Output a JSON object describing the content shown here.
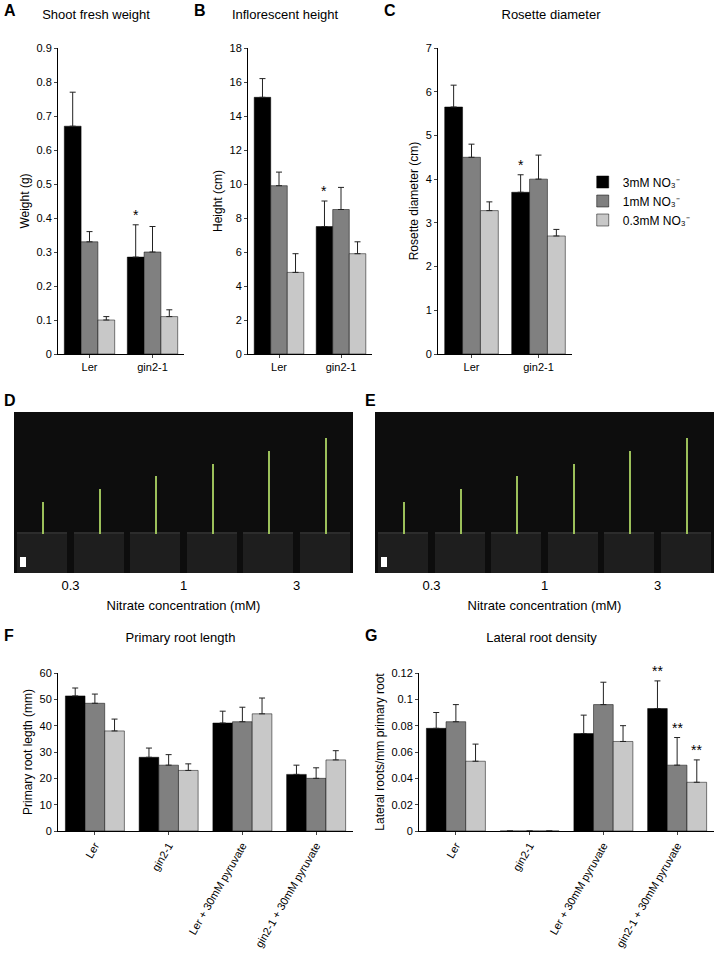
{
  "chart_data": [
    {
      "panel": "A",
      "type": "bar",
      "title": "Shoot fresh weight",
      "ylabel": "Weight (g)",
      "categories": [
        "Ler",
        "gin2-1"
      ],
      "series": [
        {
          "name": "3mM NO₃⁻",
          "color": "#000000",
          "values": [
            0.67,
            0.285
          ],
          "errors": [
            0.1,
            0.095
          ]
        },
        {
          "name": "1mM NO₃⁻",
          "color": "#808080",
          "values": [
            0.33,
            0.3
          ],
          "errors": [
            0.03,
            0.075
          ]
        },
        {
          "name": "0.3mM NO₃⁻",
          "color": "#c8c8c8",
          "values": [
            0.1,
            0.11
          ],
          "errors": [
            0.01,
            0.02
          ]
        }
      ],
      "ylim": [
        0,
        0.9
      ],
      "yticks": [
        0,
        0.1,
        0.2,
        0.3,
        0.4,
        0.5,
        0.6,
        0.7,
        0.8,
        0.9
      ],
      "grid": false,
      "annotations": [
        {
          "category": "gin2-1",
          "series": "3mM NO₃⁻",
          "text": "*"
        }
      ]
    },
    {
      "panel": "B",
      "type": "bar",
      "title": "Inflorescent height",
      "ylabel": "Height (cm)",
      "categories": [
        "Ler",
        "gin2-1"
      ],
      "series": [
        {
          "name": "3mM NO₃⁻",
          "color": "#000000",
          "values": [
            15.1,
            7.5
          ],
          "errors": [
            1.1,
            1.5
          ]
        },
        {
          "name": "1mM NO₃⁻",
          "color": "#808080",
          "values": [
            9.9,
            8.5
          ],
          "errors": [
            0.8,
            1.3
          ]
        },
        {
          "name": "0.3mM NO₃⁻",
          "color": "#c8c8c8",
          "values": [
            4.8,
            5.9
          ],
          "errors": [
            1.1,
            0.7
          ]
        }
      ],
      "ylim": [
        0,
        18
      ],
      "yticks": [
        0,
        2,
        4,
        6,
        8,
        10,
        12,
        14,
        16,
        18
      ],
      "grid": false,
      "annotations": [
        {
          "category": "gin2-1",
          "series": "3mM NO₃⁻",
          "text": "*"
        }
      ]
    },
    {
      "panel": "C",
      "type": "bar",
      "title": "Rosette diameter",
      "ylabel": "Rosette diameter (cm)",
      "categories": [
        "Ler",
        "gin2-1"
      ],
      "series": [
        {
          "name": "3mM NO₃⁻",
          "color": "#000000",
          "values": [
            5.65,
            3.7
          ],
          "errors": [
            0.5,
            0.4
          ]
        },
        {
          "name": "1mM NO₃⁻",
          "color": "#808080",
          "values": [
            4.5,
            4.0
          ],
          "errors": [
            0.3,
            0.55
          ]
        },
        {
          "name": "0.3mM NO₃⁻",
          "color": "#c8c8c8",
          "values": [
            3.28,
            2.7
          ],
          "errors": [
            0.2,
            0.15
          ]
        }
      ],
      "ylim": [
        0,
        7
      ],
      "yticks": [
        0,
        1,
        2,
        3,
        4,
        5,
        6,
        7
      ],
      "grid": false,
      "legend": "right",
      "annotations": [
        {
          "category": "gin2-1",
          "series": "3mM NO₃⁻",
          "text": "*"
        }
      ]
    },
    {
      "panel": "D",
      "type": "photo",
      "xlabel": "Nitrate concentration (mM)",
      "xticks": [
        0.3,
        1,
        3
      ]
    },
    {
      "panel": "E",
      "type": "photo",
      "xlabel": "Nitrate concentration (mM)",
      "xticks": [
        0.3,
        1,
        3
      ]
    },
    {
      "panel": "F",
      "type": "bar",
      "title": "Primary root length",
      "ylabel": "Primary root legth (mm)",
      "categories": [
        "Ler",
        "gin2-1",
        "Ler + 30mM pyruvate",
        "gin2-1 + 30mM pyruvate"
      ],
      "series": [
        {
          "name": "3mM NO₃⁻",
          "color": "#000000",
          "values": [
            51.3,
            28,
            41,
            21.5
          ],
          "errors": [
            3,
            3.5,
            4.5,
            3.5
          ]
        },
        {
          "name": "1mM NO₃⁻",
          "color": "#808080",
          "values": [
            48.5,
            25,
            41.5,
            20
          ],
          "errors": [
            3.5,
            4,
            5.5,
            4
          ]
        },
        {
          "name": "0.3mM NO₃⁻",
          "color": "#c8c8c8",
          "values": [
            38,
            23,
            44.5,
            27
          ],
          "errors": [
            4.5,
            2.5,
            6,
            3.5
          ]
        }
      ],
      "ylim": [
        0,
        60
      ],
      "yticks": [
        0,
        10,
        20,
        30,
        40,
        50,
        60
      ],
      "grid": false
    },
    {
      "panel": "G",
      "type": "bar",
      "title": "Lateral root density",
      "ylabel": "Lateral roots/mm primary root",
      "categories": [
        "Ler",
        "gin2-1",
        "Ler + 30mM pyruvate",
        "gin2-1 + 30mM pyruvate"
      ],
      "series": [
        {
          "name": "3mM NO₃⁻",
          "color": "#000000",
          "values": [
            0.078,
            0,
            0.074,
            0.093
          ],
          "errors": [
            0.012,
            0,
            0.014,
            0.021
          ]
        },
        {
          "name": "1mM NO₃⁻",
          "color": "#808080",
          "values": [
            0.083,
            0,
            0.096,
            0.05
          ],
          "errors": [
            0.013,
            0,
            0.017,
            0.021
          ]
        },
        {
          "name": "0.3mM NO₃⁻",
          "color": "#c8c8c8",
          "values": [
            0.053,
            0,
            0.068,
            0.037
          ],
          "errors": [
            0.013,
            0,
            0.012,
            0.017
          ]
        }
      ],
      "ylim": [
        0,
        0.12
      ],
      "yticks": [
        0,
        0.02,
        0.04,
        0.06,
        0.08,
        0.1,
        0.12
      ],
      "grid": false,
      "annotations": [
        {
          "category": "gin2-1 + 30mM pyruvate",
          "series": "3mM NO₃⁻",
          "text": "**"
        },
        {
          "category": "gin2-1 + 30mM pyruvate",
          "series": "1mM NO₃⁻",
          "text": "**"
        },
        {
          "category": "gin2-1 + 30mM pyruvate",
          "series": "0.3mM NO₃⁻",
          "text": "**"
        }
      ]
    }
  ]
}
